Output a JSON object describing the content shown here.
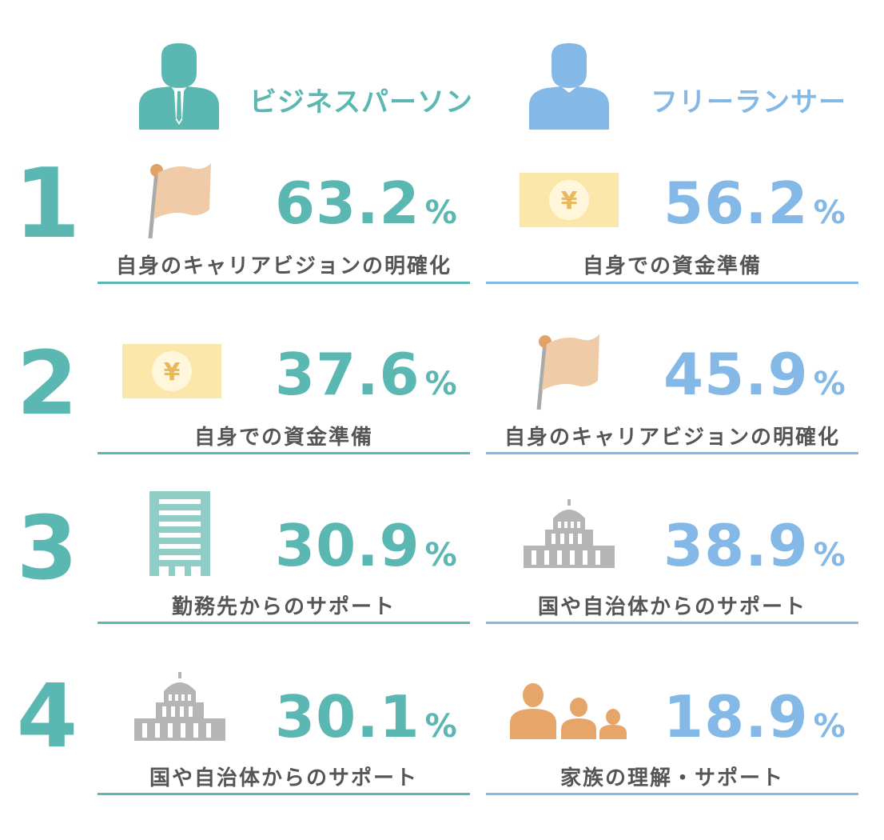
{
  "columns": [
    {
      "title": "ビジネスパーソン",
      "icon": "businessman-icon",
      "color": "#5bb7b1",
      "items": [
        {
          "rank": "1",
          "value": 63.2,
          "value_text": "63.2",
          "unit": "%",
          "label": "自身のキャリアビジョンの明確化",
          "icon": "flag-icon"
        },
        {
          "rank": "2",
          "value": 37.6,
          "value_text": "37.6",
          "unit": "%",
          "label": "自身での資金準備",
          "icon": "yen-bill-icon"
        },
        {
          "rank": "3",
          "value": 30.9,
          "value_text": "30.9",
          "unit": "%",
          "label": "勤務先からのサポート",
          "icon": "office-building-icon"
        },
        {
          "rank": "4",
          "value": 30.1,
          "value_text": "30.1",
          "unit": "%",
          "label": "国や自治体からのサポート",
          "icon": "government-building-icon"
        }
      ]
    },
    {
      "title": "フリーランサー",
      "icon": "person-icon",
      "color": "#84b8e6",
      "items": [
        {
          "value": 56.2,
          "value_text": "56.2",
          "unit": "%",
          "label": "自身での資金準備",
          "icon": "yen-bill-icon"
        },
        {
          "value": 45.9,
          "value_text": "45.9",
          "unit": "%",
          "label": "自身のキャリアビジョンの明確化",
          "icon": "flag-icon"
        },
        {
          "value": 38.9,
          "value_text": "38.9",
          "unit": "%",
          "label": "国や自治体からのサポート",
          "icon": "government-building-icon"
        },
        {
          "value": 18.9,
          "value_text": "18.9",
          "unit": "%",
          "label": "家族の理解・サポート",
          "icon": "family-icon"
        }
      ]
    }
  ],
  "colors": {
    "flag": "#efcba8",
    "flag_ball": "#e0a266",
    "pole": "#aaaaaa",
    "bill": "#fbe7a9",
    "yen": "#e8b85a",
    "building_teal": "#8fcdc6",
    "building_gray": "#b5b5b5",
    "family": "#e6a669"
  },
  "chart_data": {
    "type": "table",
    "categories": [
      "1",
      "2",
      "3",
      "4"
    ],
    "series": [
      {
        "name": "ビジネスパーソン",
        "values": [
          63.2,
          37.6,
          30.9,
          30.1
        ],
        "labels": [
          "自身のキャリアビジョンの明確化",
          "自身での資金準備",
          "勤務先からのサポート",
          "国や自治体からのサポート"
        ]
      },
      {
        "name": "フリーランサー",
        "values": [
          56.2,
          45.9,
          38.9,
          18.9
        ],
        "labels": [
          "自身での資金準備",
          "自身のキャリアビジョンの明確化",
          "国や自治体からのサポート",
          "家族の理解・サポート"
        ]
      }
    ]
  }
}
